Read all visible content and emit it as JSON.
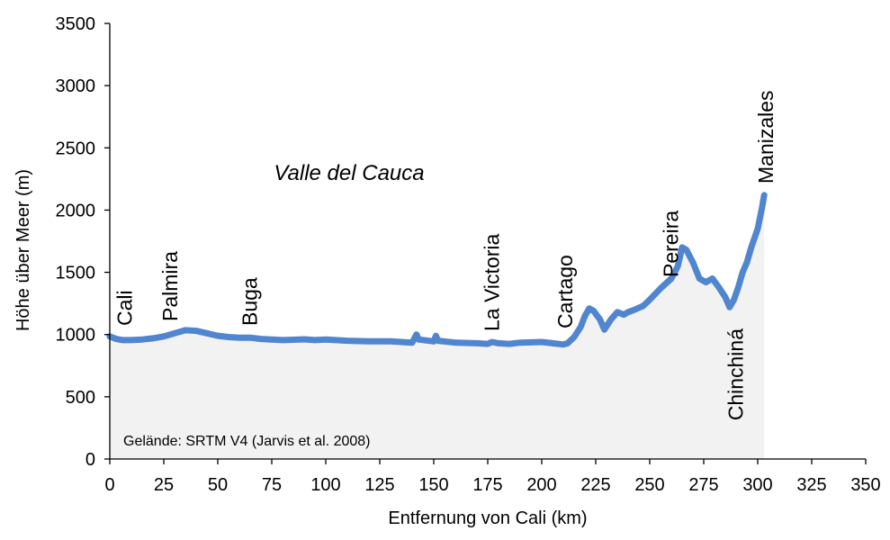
{
  "colors": {
    "line": "#4f86cf",
    "area": "#f2f2f2",
    "axis": "#000000"
  },
  "chart_data": {
    "type": "area",
    "title": "",
    "xlabel": "Entfernung von Cali (km)",
    "ylabel": "Höhe über Meer (m)",
    "xlim": [
      0,
      350
    ],
    "ylim": [
      0,
      3500
    ],
    "x_ticks": [
      0,
      25,
      50,
      75,
      100,
      125,
      150,
      175,
      200,
      225,
      250,
      275,
      300,
      325,
      350
    ],
    "y_ticks": [
      0,
      500,
      1000,
      1500,
      2000,
      2500,
      3000,
      3500
    ],
    "grid": false,
    "series": [
      {
        "x": [
          0,
          3,
          6,
          10,
          15,
          20,
          25,
          30,
          35,
          40,
          45,
          50,
          55,
          60,
          65,
          70,
          75,
          80,
          85,
          90,
          95,
          100,
          110,
          120,
          130,
          140,
          142,
          143,
          150,
          151,
          152,
          160,
          170,
          175,
          177,
          180,
          185,
          190,
          200,
          205,
          210,
          212,
          215,
          218,
          220,
          222,
          224,
          227,
          229,
          232,
          235,
          238,
          240,
          243,
          247,
          250,
          255,
          260,
          263,
          265,
          267,
          270,
          273,
          276,
          279,
          282,
          285,
          287,
          289,
          291,
          293,
          295,
          297,
          300,
          302,
          303
        ],
        "values": [
          985,
          965,
          955,
          955,
          960,
          970,
          985,
          1010,
          1035,
          1030,
          1010,
          990,
          980,
          975,
          975,
          965,
          960,
          955,
          958,
          962,
          955,
          960,
          950,
          945,
          945,
          935,
          1000,
          960,
          945,
          990,
          950,
          935,
          930,
          925,
          940,
          930,
          925,
          935,
          940,
          930,
          920,
          930,
          980,
          1060,
          1150,
          1210,
          1190,
          1120,
          1040,
          1120,
          1180,
          1160,
          1180,
          1200,
          1230,
          1280,
          1370,
          1450,
          1550,
          1700,
          1680,
          1580,
          1450,
          1420,
          1450,
          1380,
          1300,
          1220,
          1280,
          1380,
          1500,
          1580,
          1700,
          1850,
          2020,
          2120
        ]
      }
    ],
    "place_labels": [
      {
        "text": "Cali",
        "x": 1
      },
      {
        "text": "Palmira",
        "x": 22
      },
      {
        "text": "Buga",
        "x": 59
      },
      {
        "text": "La Victoria",
        "x": 171
      },
      {
        "text": "Cartago",
        "x": 205
      },
      {
        "text": "Pereira",
        "x": 254
      },
      {
        "text": "Manizales",
        "x": 298
      },
      {
        "text": "Chinchiná",
        "x": 284
      }
    ],
    "region_label": "Valle del Cauca",
    "source_note": "Gelände: SRTM V4 (Jarvis et al. 2008)"
  }
}
